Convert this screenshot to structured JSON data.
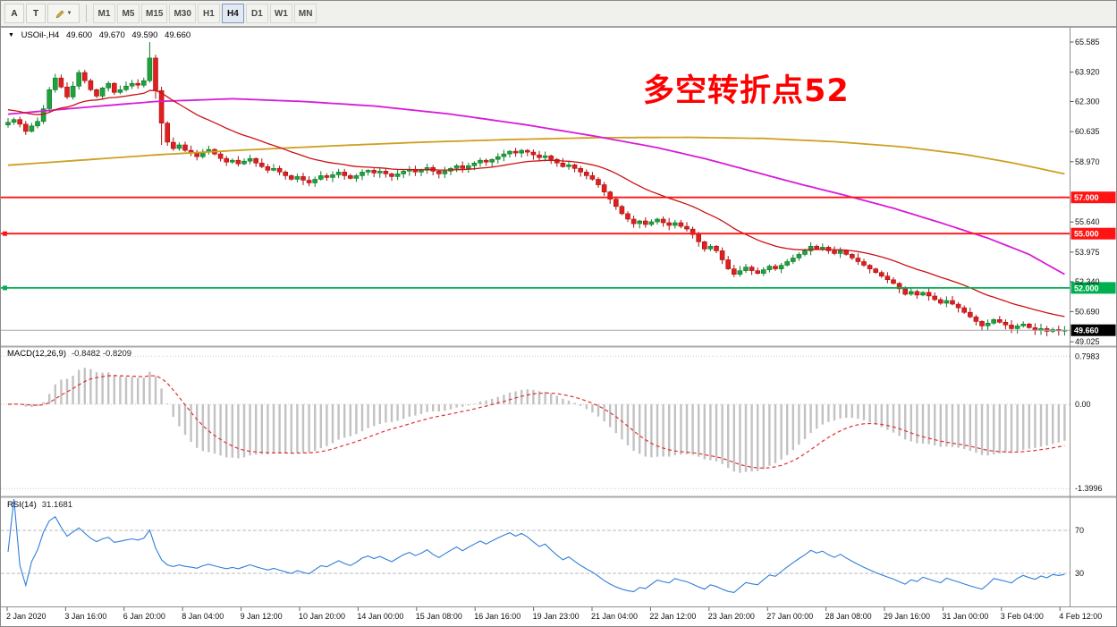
{
  "toolbar": {
    "tool_buttons": [
      {
        "id": "arrow",
        "label": "A"
      },
      {
        "id": "text",
        "label": "T"
      }
    ],
    "draw_dropdown_caret": "▼",
    "timeframes": [
      {
        "label": "M1",
        "active": false
      },
      {
        "label": "M5",
        "active": false
      },
      {
        "label": "M15",
        "active": false
      },
      {
        "label": "M30",
        "active": false
      },
      {
        "label": "H1",
        "active": false
      },
      {
        "label": "H4",
        "active": true
      },
      {
        "label": "D1",
        "active": false
      },
      {
        "label": "W1",
        "active": false
      },
      {
        "label": "MN",
        "active": false
      }
    ]
  },
  "symbol_header": {
    "collapse_triangle": "▼",
    "symbol": "USOil-,H4",
    "open": "49.600",
    "high": "49.670",
    "low": "49.590",
    "close": "49.660"
  },
  "annotation": {
    "text": "多空转折点52",
    "color": "#ff0000"
  },
  "chart_data": {
    "type": "candlestick",
    "symbol": "USOil-",
    "timeframe": "H4",
    "first_open": 61.0,
    "closes": [
      61.15,
      61.3,
      61.05,
      60.65,
      60.95,
      61.2,
      61.9,
      62.95,
      63.6,
      63.1,
      62.55,
      63.15,
      63.9,
      63.45,
      62.95,
      62.6,
      63.05,
      63.3,
      62.8,
      62.95,
      63.15,
      63.3,
      63.2,
      63.45,
      64.7,
      62.9,
      61.1,
      60.05,
      59.7,
      59.9,
      59.6,
      59.45,
      59.25,
      59.5,
      59.65,
      59.4,
      59.15,
      58.95,
      59.05,
      58.85,
      59.0,
      59.15,
      58.9,
      58.7,
      58.5,
      58.6,
      58.4,
      58.2,
      58.0,
      58.15,
      57.95,
      57.8,
      58.0,
      58.2,
      58.1,
      58.25,
      58.4,
      58.2,
      58.05,
      58.2,
      58.4,
      58.5,
      58.35,
      58.45,
      58.3,
      58.15,
      58.3,
      58.45,
      58.55,
      58.4,
      58.5,
      58.65,
      58.45,
      58.3,
      58.45,
      58.6,
      58.75,
      58.6,
      58.75,
      58.9,
      59.05,
      58.95,
      59.1,
      59.25,
      59.4,
      59.55,
      59.45,
      59.6,
      59.5,
      59.35,
      59.2,
      59.3,
      59.1,
      58.9,
      58.7,
      58.8,
      58.6,
      58.4,
      58.2,
      58.0,
      57.7,
      57.3,
      56.9,
      56.5,
      56.1,
      55.8,
      55.55,
      55.7,
      55.5,
      55.65,
      55.8,
      55.6,
      55.45,
      55.6,
      55.4,
      55.25,
      54.95,
      54.55,
      54.15,
      54.3,
      54.05,
      53.55,
      53.05,
      52.75,
      52.95,
      53.15,
      52.95,
      52.8,
      53.0,
      53.2,
      53.05,
      53.25,
      53.45,
      53.65,
      53.85,
      54.05,
      54.3,
      54.15,
      54.25,
      54.05,
      53.9,
      54.05,
      53.85,
      53.65,
      53.45,
      53.25,
      53.05,
      52.85,
      52.65,
      52.45,
      52.25,
      51.95,
      51.65,
      51.8,
      51.6,
      51.75,
      51.55,
      51.35,
      51.15,
      51.3,
      51.1,
      50.9,
      50.65,
      50.4,
      50.15,
      49.9,
      50.05,
      50.25,
      50.1,
      49.95,
      49.75,
      49.9,
      50.0,
      49.8,
      49.65,
      49.75,
      49.6,
      49.7,
      49.63,
      49.66
    ],
    "wick_overrides": {
      "3": {
        "l": 60.45
      },
      "24": {
        "h": 65.58
      },
      "25": {
        "l": 62.45
      },
      "26": {
        "l": 59.9
      }
    },
    "x_labels": [
      "2 Jan 2020",
      "3 Jan 16:00",
      "6 Jan 20:00",
      "8 Jan 04:00",
      "9 Jan 12:00",
      "10 Jan 20:00",
      "14 Jan 00:00",
      "15 Jan 08:00",
      "16 Jan 16:00",
      "19 Jan 23:00",
      "21 Jan 04:00",
      "22 Jan 12:00",
      "23 Jan 20:00",
      "27 Jan 00:00",
      "28 Jan 08:00",
      "29 Jan 16:00",
      "31 Jan 00:00",
      "3 Feb 04:00",
      "4 Feb 12:00"
    ],
    "y_ticks": [
      "65.585",
      "63.920",
      "62.300",
      "60.635",
      "58.970",
      "55.640",
      "53.975",
      "52.340",
      "50.690",
      "49.025"
    ],
    "horizontal_lines": [
      {
        "label": "57.000",
        "price": 57.0,
        "color": "#ff1414",
        "badge_bg": "#ff1414",
        "left_marker": false
      },
      {
        "label": "55.000",
        "price": 55.0,
        "color": "#ff1414",
        "badge_bg": "#ff1414",
        "left_marker": true
      },
      {
        "label": "52.000",
        "price": 52.0,
        "color": "#00b050",
        "badge_bg": "#00b050",
        "left_marker": true
      }
    ],
    "current_price": {
      "label": "49.660",
      "price": 49.66,
      "badge_bg": "#000000"
    },
    "moving_averages": {
      "fast_ema": {
        "period": 25,
        "seed": 61.9,
        "color": "#cc1111"
      },
      "mid_anchors": {
        "color": "#d81bd8",
        "points": [
          [
            0,
            61.6
          ],
          [
            12,
            61.95
          ],
          [
            25,
            62.3
          ],
          [
            38,
            62.45
          ],
          [
            50,
            62.3
          ],
          [
            62,
            62.05
          ],
          [
            75,
            61.6
          ],
          [
            88,
            61.0
          ],
          [
            100,
            60.35
          ],
          [
            110,
            59.75
          ],
          [
            118,
            59.15
          ],
          [
            126,
            58.45
          ],
          [
            134,
            57.75
          ],
          [
            142,
            57.1
          ],
          [
            150,
            56.4
          ],
          [
            158,
            55.6
          ],
          [
            166,
            54.75
          ],
          [
            173,
            53.85
          ],
          [
            179,
            52.75
          ]
        ]
      },
      "slow_anchors": {
        "color": "#cf9f1f",
        "points": [
          [
            0,
            58.78
          ],
          [
            12,
            59.05
          ],
          [
            25,
            59.35
          ],
          [
            40,
            59.62
          ],
          [
            55,
            59.85
          ],
          [
            70,
            60.05
          ],
          [
            85,
            60.2
          ],
          [
            100,
            60.3
          ],
          [
            115,
            60.32
          ],
          [
            128,
            60.26
          ],
          [
            140,
            60.08
          ],
          [
            152,
            59.78
          ],
          [
            162,
            59.38
          ],
          [
            170,
            58.92
          ],
          [
            179,
            58.3
          ]
        ]
      }
    },
    "candle_colors": {
      "up": "#1fa13c",
      "up_border": "#0b7a28",
      "down": "#e01f1f",
      "down_border": "#a80f0f"
    }
  },
  "macd": {
    "title": "MACD(12,26,9)",
    "values_text": "-0.8482 -0.8209",
    "fast": 12,
    "slow": 26,
    "signal": 9,
    "axis_labels": [
      {
        "text": "0.7983",
        "value": 0.7983
      },
      {
        "text": "0.00",
        "value": 0
      },
      {
        "text": "-1.3996",
        "value": -1.3996
      }
    ],
    "histogram_color": "#c2c2c2",
    "signal_color": "#e33030"
  },
  "rsi": {
    "title": "RSI(14)",
    "value_text": "31.1681",
    "period": 14,
    "levels": [
      {
        "text": "70",
        "value": 70
      },
      {
        "text": "30",
        "value": 30
      }
    ],
    "line_color": "#2f7ed8"
  }
}
